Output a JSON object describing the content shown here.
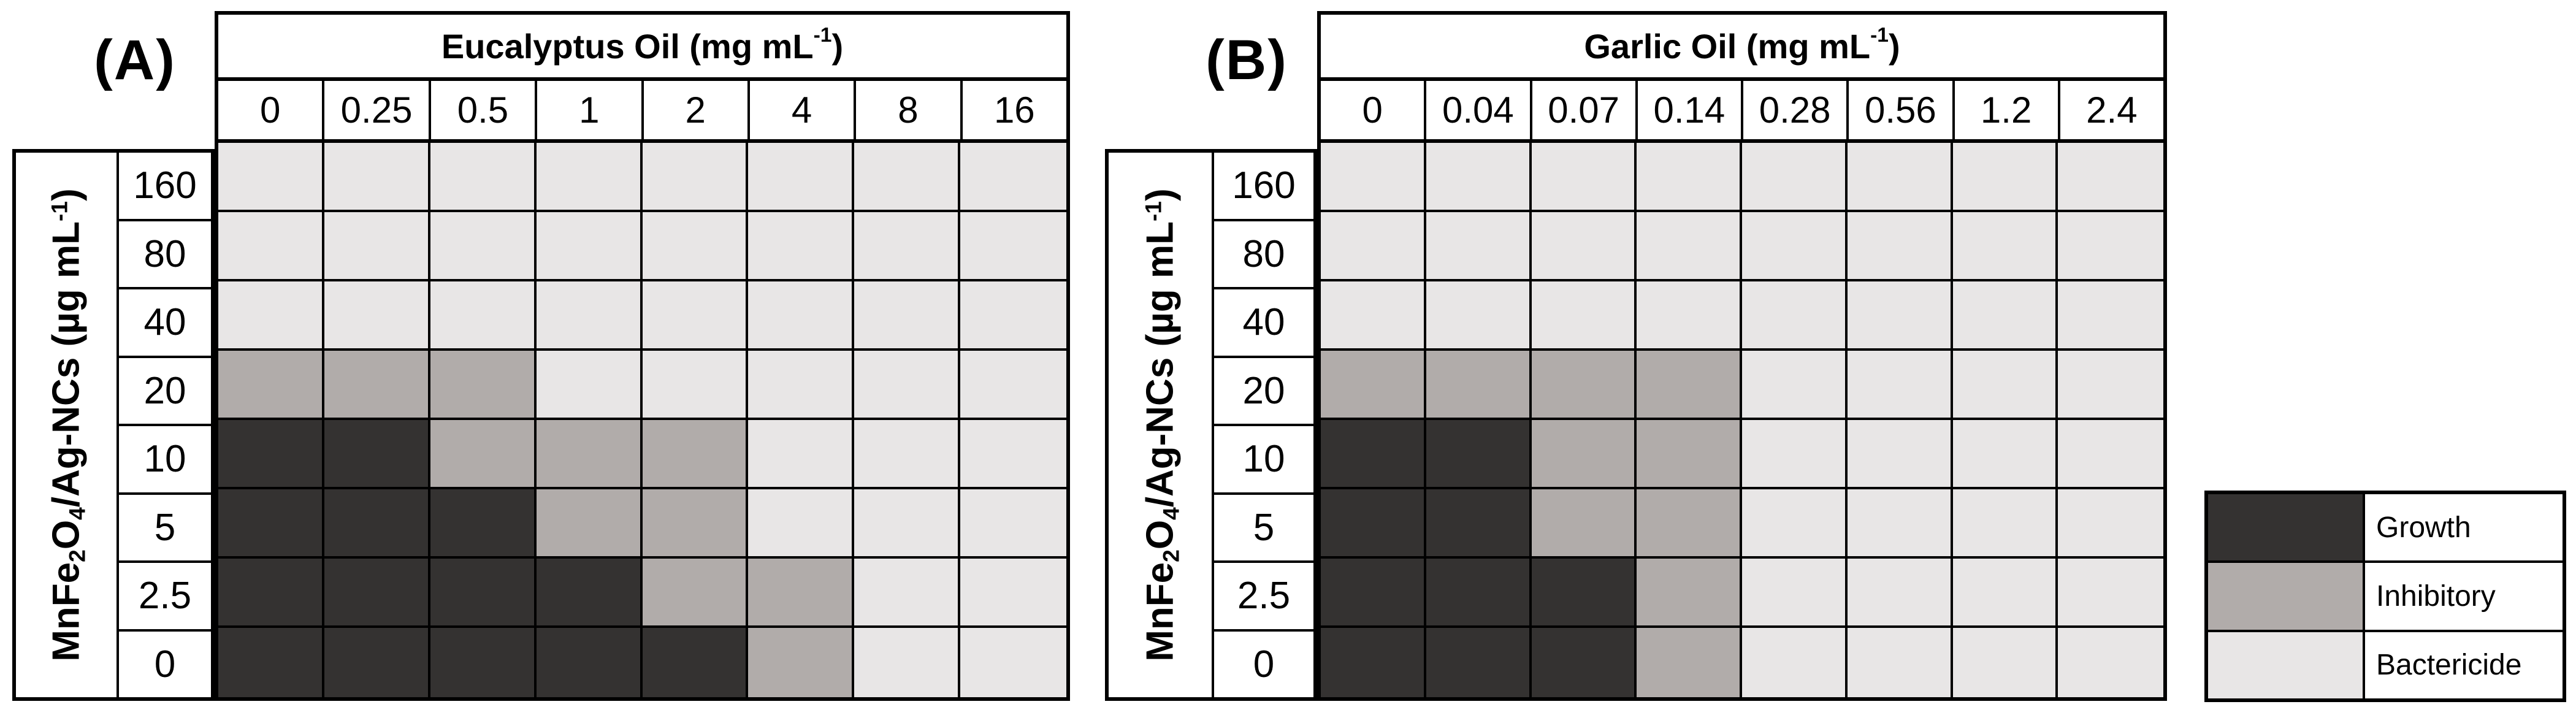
{
  "figure": {
    "panel_a_label": "(A)",
    "panel_b_label": "(B)"
  },
  "state_colors": {
    "G": "#343231",
    "I": "#b1acaa",
    "B": "#e8e6e6"
  },
  "legend": {
    "items": [
      {
        "key": "G",
        "label": "Growth",
        "color": "#343231"
      },
      {
        "key": "I",
        "label": "Inhibitory",
        "color": "#b1acaa"
      },
      {
        "key": "B",
        "label": "Bactericide",
        "color": "#e8e6e6"
      }
    ]
  },
  "chart_data": [
    {
      "type": "heatmap",
      "panel": "A",
      "title_text": "Eucalyptus Oil (mg mL-1)",
      "title_segments": [
        {
          "t": "Eucalyptus Oil (mg mL"
        },
        {
          "t": "-1",
          "sup": true
        },
        {
          "t": ")"
        }
      ],
      "x_categories": [
        "0",
        "0.25",
        "0.5",
        "1",
        "2",
        "4",
        "8",
        "16"
      ],
      "y_axis_text": "MnFe2O4/Ag-NCs (µg mL-1)",
      "y_axis_segments": [
        {
          "t": "MnFe"
        },
        {
          "t": "2",
          "sub": true
        },
        {
          "t": "O"
        },
        {
          "t": "4",
          "sub": true
        },
        {
          "t": "/Ag-NCs (µg mL"
        },
        {
          "t": "-1",
          "sup": true
        },
        {
          "t": ")"
        }
      ],
      "y_categories": [
        "160",
        "80",
        "40",
        "20",
        "10",
        "5",
        "2.5",
        "0"
      ],
      "cell_states_legend": "G=Growth, I=Inhibitory, B=Bactericide; rows top-to-bottom follow y_categories",
      "cells": [
        [
          "B",
          "B",
          "B",
          "B",
          "B",
          "B",
          "B",
          "B"
        ],
        [
          "B",
          "B",
          "B",
          "B",
          "B",
          "B",
          "B",
          "B"
        ],
        [
          "B",
          "B",
          "B",
          "B",
          "B",
          "B",
          "B",
          "B"
        ],
        [
          "I",
          "I",
          "I",
          "B",
          "B",
          "B",
          "B",
          "B"
        ],
        [
          "G",
          "G",
          "I",
          "I",
          "I",
          "B",
          "B",
          "B"
        ],
        [
          "G",
          "G",
          "G",
          "I",
          "I",
          "B",
          "B",
          "B"
        ],
        [
          "G",
          "G",
          "G",
          "G",
          "I",
          "I",
          "B",
          "B"
        ],
        [
          "G",
          "G",
          "G",
          "G",
          "G",
          "I",
          "B",
          "B"
        ]
      ]
    },
    {
      "type": "heatmap",
      "panel": "B",
      "title_text": "Garlic Oil (mg mL-1)",
      "title_segments": [
        {
          "t": "Garlic Oil (mg mL"
        },
        {
          "t": "-1",
          "sup": true
        },
        {
          "t": ")"
        }
      ],
      "x_categories": [
        "0",
        "0.04",
        "0.07",
        "0.14",
        "0.28",
        "0.56",
        "1.2",
        "2.4"
      ],
      "y_axis_text": "MnFe2O4/Ag-NCs (µg mL-1)",
      "y_axis_segments": [
        {
          "t": "MnFe"
        },
        {
          "t": "2",
          "sub": true
        },
        {
          "t": "O"
        },
        {
          "t": "4",
          "sub": true
        },
        {
          "t": "/Ag-NCs (µg mL"
        },
        {
          "t": "-1",
          "sup": true
        },
        {
          "t": ")"
        }
      ],
      "y_categories": [
        "160",
        "80",
        "40",
        "20",
        "10",
        "5",
        "2.5",
        "0"
      ],
      "cell_states_legend": "G=Growth, I=Inhibitory, B=Bactericide; rows top-to-bottom follow y_categories",
      "cells": [
        [
          "B",
          "B",
          "B",
          "B",
          "B",
          "B",
          "B",
          "B"
        ],
        [
          "B",
          "B",
          "B",
          "B",
          "B",
          "B",
          "B",
          "B"
        ],
        [
          "B",
          "B",
          "B",
          "B",
          "B",
          "B",
          "B",
          "B"
        ],
        [
          "I",
          "I",
          "I",
          "I",
          "B",
          "B",
          "B",
          "B"
        ],
        [
          "G",
          "G",
          "I",
          "I",
          "B",
          "B",
          "B",
          "B"
        ],
        [
          "G",
          "G",
          "I",
          "I",
          "B",
          "B",
          "B",
          "B"
        ],
        [
          "G",
          "G",
          "G",
          "I",
          "B",
          "B",
          "B",
          "B"
        ],
        [
          "G",
          "G",
          "G",
          "I",
          "B",
          "B",
          "B",
          "B"
        ]
      ]
    }
  ]
}
